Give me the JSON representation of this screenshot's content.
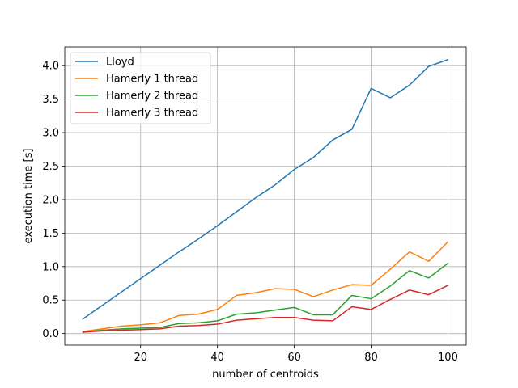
{
  "chart_data": {
    "type": "line",
    "title": "",
    "xlabel": "number of centroids",
    "ylabel": "execution time [s]",
    "xlim": [
      0.25,
      104.75
    ],
    "ylim": [
      -0.173,
      4.28
    ],
    "grid": true,
    "legend_position": "top-left",
    "x_ticks": [
      20,
      40,
      60,
      80,
      100
    ],
    "x_tick_labels": [
      "20",
      "40",
      "60",
      "80",
      "100"
    ],
    "y_ticks": [
      0.0,
      0.5,
      1.0,
      1.5,
      2.0,
      2.5,
      3.0,
      3.5,
      4.0
    ],
    "y_tick_labels": [
      "0.0",
      "0.5",
      "1.0",
      "1.5",
      "2.0",
      "2.5",
      "3.0",
      "3.5",
      "4.0"
    ],
    "x": [
      5,
      10,
      15,
      20,
      25,
      30,
      35,
      40,
      45,
      50,
      55,
      60,
      65,
      70,
      75,
      80,
      85,
      90,
      95,
      100
    ],
    "series": [
      {
        "name": "Lloyd",
        "color": "#1f77b4",
        "values": [
          0.22,
          0.42,
          0.62,
          0.82,
          1.02,
          1.22,
          1.41,
          1.61,
          1.82,
          2.03,
          2.22,
          2.45,
          2.63,
          2.89,
          3.05,
          3.66,
          3.52,
          3.71,
          3.99,
          4.09
        ]
      },
      {
        "name": "Hamerly 1 thread",
        "color": "#ff7f0e",
        "values": [
          0.03,
          0.07,
          0.11,
          0.13,
          0.16,
          0.27,
          0.29,
          0.36,
          0.57,
          0.61,
          0.67,
          0.66,
          0.55,
          0.65,
          0.73,
          0.72,
          0.96,
          1.22,
          1.08,
          1.37
        ]
      },
      {
        "name": "Hamerly 2 thread",
        "color": "#2ca02c",
        "values": [
          0.02,
          0.05,
          0.07,
          0.08,
          0.09,
          0.15,
          0.16,
          0.19,
          0.29,
          0.31,
          0.35,
          0.39,
          0.28,
          0.28,
          0.57,
          0.52,
          0.71,
          0.94,
          0.83,
          1.05
        ]
      },
      {
        "name": "Hamerly 3 thread",
        "color": "#d62728",
        "values": [
          0.02,
          0.04,
          0.05,
          0.06,
          0.07,
          0.11,
          0.12,
          0.14,
          0.2,
          0.22,
          0.24,
          0.24,
          0.2,
          0.19,
          0.4,
          0.36,
          0.51,
          0.65,
          0.58,
          0.72
        ]
      }
    ]
  }
}
